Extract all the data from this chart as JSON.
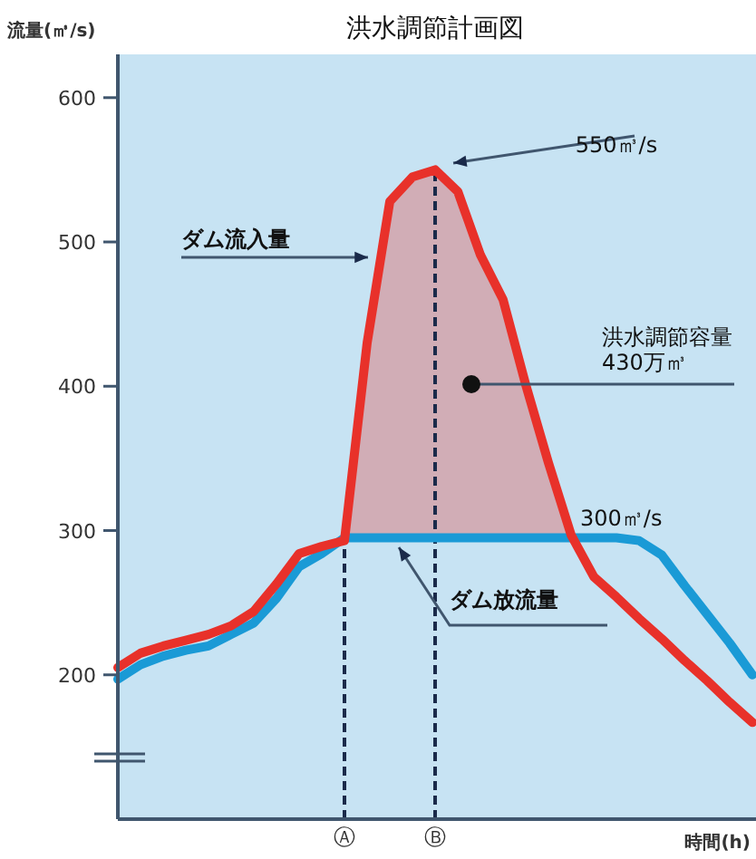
{
  "chart_data": {
    "type": "line",
    "title": "洪水調節計画図",
    "ylabel": "流量(㎥/s)",
    "xlabel": "時間(h)",
    "categories": [
      null,
      null,
      null,
      null,
      null,
      null,
      null,
      null,
      null,
      null,
      "Ⓐ",
      null,
      null,
      null,
      "Ⓑ",
      null,
      null,
      null,
      null,
      null,
      null,
      null,
      null,
      null,
      null,
      null,
      null,
      null,
      null
    ],
    "series": [
      {
        "color": "#e8312a",
        "values": [
          205,
          215,
          220,
          224,
          228,
          234,
          244,
          263,
          284,
          289,
          293,
          430,
          528,
          545,
          550,
          535,
          491,
          460,
          401,
          347,
          297,
          268,
          254,
          239,
          225,
          210,
          196,
          181,
          167
        ],
        "lower": [
          null,
          null,
          null,
          null,
          null,
          null,
          null,
          null,
          null,
          null,
          295,
          295,
          295,
          295,
          295,
          295,
          295,
          295,
          295,
          295,
          295,
          null,
          null,
          null,
          null,
          null,
          null,
          null,
          null
        ],
        "upper": [
          null,
          null,
          null,
          null,
          null,
          null,
          null,
          null,
          null,
          null,
          293,
          430,
          528,
          545,
          550,
          535,
          491,
          460,
          401,
          347,
          297,
          null,
          null,
          null,
          null,
          null,
          null,
          null,
          null
        ]
      },
      {
        "color": "#1a9ad6",
        "values": [
          197,
          207,
          213,
          217,
          220,
          228,
          236,
          253,
          275,
          284,
          295,
          295,
          295,
          295,
          295,
          295,
          295,
          295,
          295,
          295,
          295,
          295,
          295,
          293,
          283,
          262,
          242,
          222,
          200
        ]
      }
    ],
    "ylim": [
      100,
      630
    ],
    "yticks": [
      200,
      300,
      400,
      500,
      600
    ],
    "ref_lines": [
      {
        "axis": "x",
        "value": "Ⓐ",
        "line_style": "dashed",
        "color": "#1a2a4a"
      },
      {
        "axis": "x",
        "value": "Ⓑ",
        "line_style": "dashed",
        "color": "#1a2a4a"
      }
    ],
    "annotations": [
      "550㎥/s",
      "ダム流入量",
      "洪水調節容量\n430万㎥",
      "300㎥/s",
      "ダム放流量"
    ],
    "grid": false,
    "legend": false,
    "line_style": "solid",
    "marker": "none"
  }
}
